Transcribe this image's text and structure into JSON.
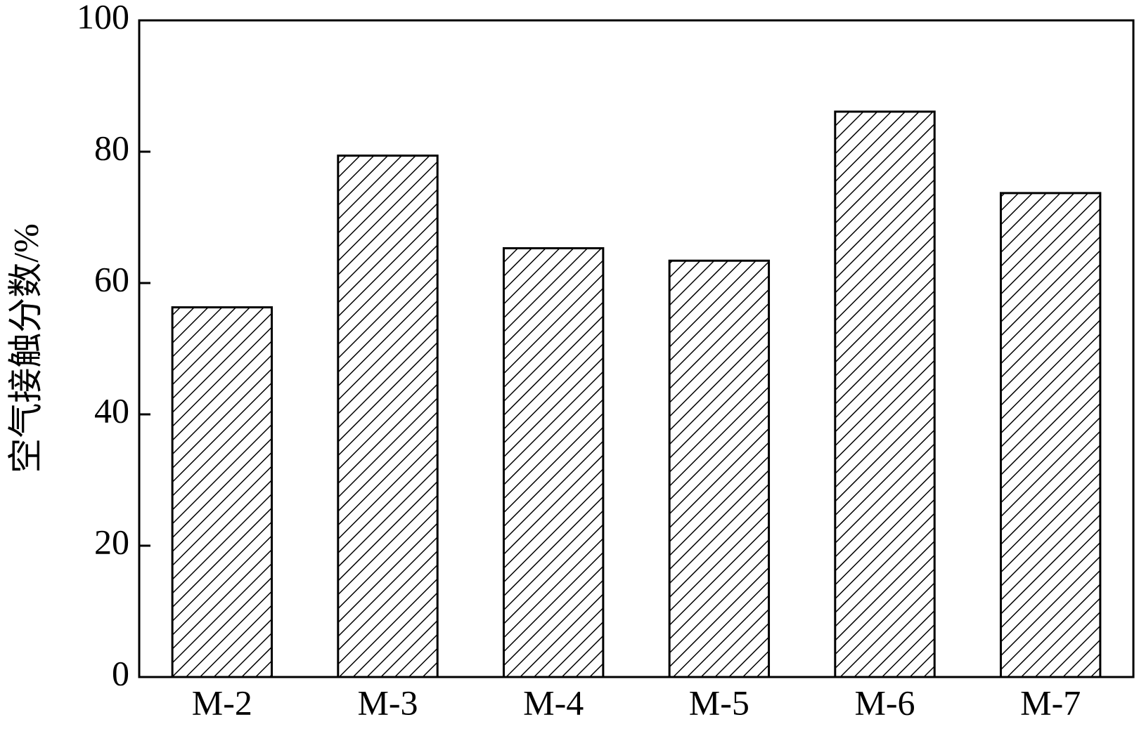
{
  "chart_data": {
    "type": "bar",
    "y_label": "空气接触分数/%",
    "categories": [
      "M-2",
      "M-3",
      "M-4",
      "M-5",
      "M-6",
      "M-7"
    ],
    "values": [
      56.3,
      79.4,
      65.3,
      63.4,
      86.1,
      73.7
    ],
    "color": "#000000",
    "ylim": [
      0,
      100
    ],
    "yticks": [
      0,
      20,
      40,
      60,
      80,
      100
    ],
    "grid": false
  }
}
